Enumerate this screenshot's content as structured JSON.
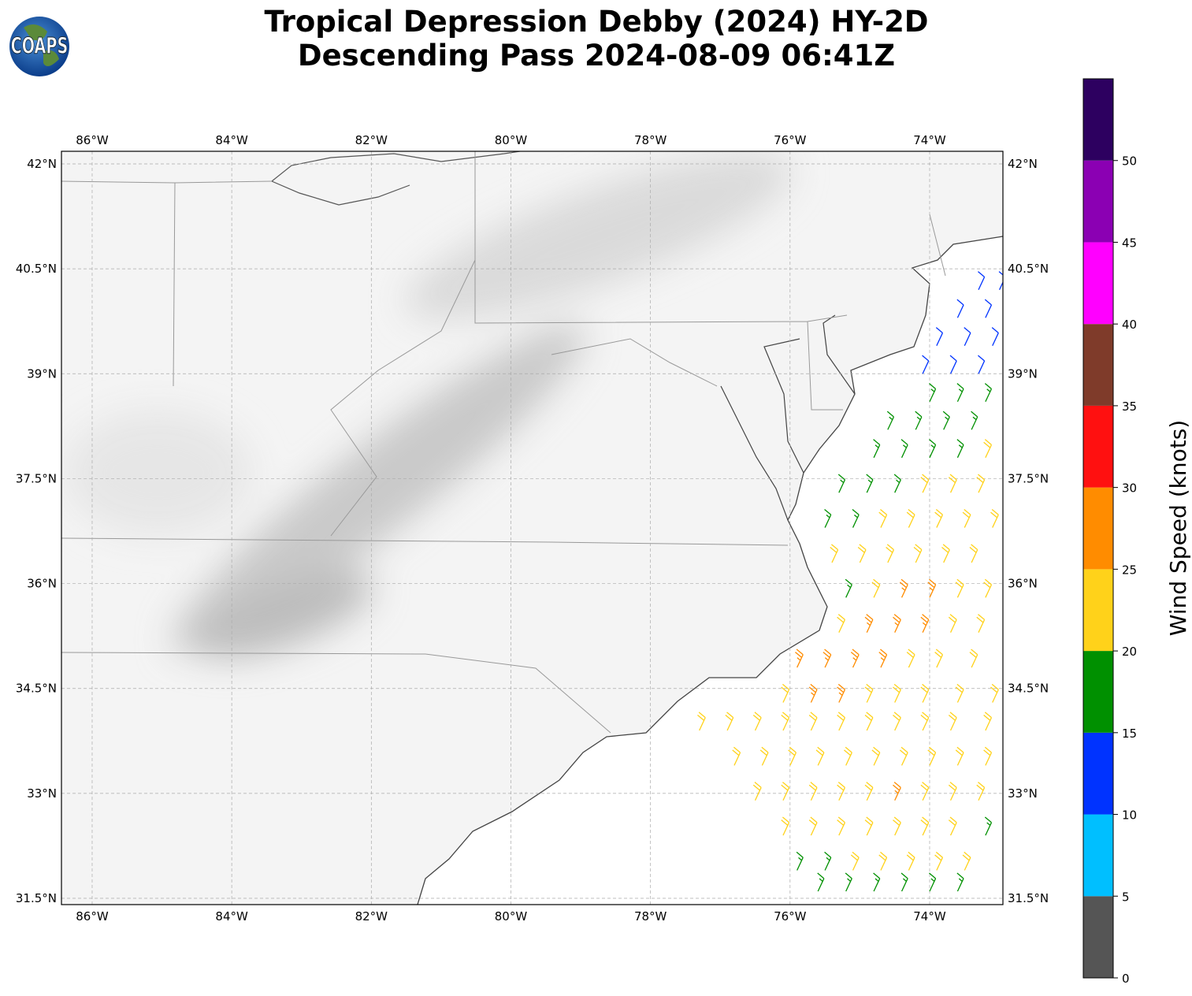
{
  "header": {
    "title_line1": "Tropical Depression Debby (2024) HY-2D",
    "title_line2": "Descending Pass 2024-08-09 06:41Z",
    "logo_text": "COAPS"
  },
  "map": {
    "lon_range": [
      -86.44,
      -72.95
    ],
    "lat_range": [
      31.41,
      42.18
    ],
    "lon_ticks": [
      {
        "value": -86,
        "label": "86°W"
      },
      {
        "value": -84,
        "label": "84°W"
      },
      {
        "value": -82,
        "label": "82°W"
      },
      {
        "value": -80,
        "label": "80°W"
      },
      {
        "value": -78,
        "label": "78°W"
      },
      {
        "value": -76,
        "label": "76°W"
      },
      {
        "value": -74,
        "label": "74°W"
      }
    ],
    "lat_ticks": [
      {
        "value": 42,
        "label": "42°N"
      },
      {
        "value": 40.5,
        "label": "40.5°N"
      },
      {
        "value": 39,
        "label": "39°N"
      },
      {
        "value": 37.5,
        "label": "37.5°N"
      },
      {
        "value": 36,
        "label": "36°N"
      },
      {
        "value": 34.5,
        "label": "34.5°N"
      },
      {
        "value": 33,
        "label": "33°N"
      },
      {
        "value": 31.5,
        "label": "31.5°N"
      }
    ],
    "barbs": [
      [
        -73.3,
        40.2,
        12
      ],
      [
        -73.0,
        40.2,
        12
      ],
      [
        -73.6,
        39.8,
        12
      ],
      [
        -73.2,
        39.8,
        12
      ],
      [
        -73.9,
        39.4,
        12
      ],
      [
        -73.5,
        39.4,
        13
      ],
      [
        -73.1,
        39.4,
        12
      ],
      [
        -74.1,
        39.0,
        11
      ],
      [
        -73.7,
        39.0,
        13
      ],
      [
        -73.3,
        39.0,
        14
      ],
      [
        -74.0,
        38.6,
        17
      ],
      [
        -73.6,
        38.6,
        18
      ],
      [
        -73.2,
        38.6,
        16
      ],
      [
        -74.6,
        38.2,
        17
      ],
      [
        -74.2,
        38.2,
        18
      ],
      [
        -73.8,
        38.2,
        18
      ],
      [
        -73.4,
        38.2,
        17
      ],
      [
        -74.8,
        37.8,
        18
      ],
      [
        -74.4,
        37.8,
        19
      ],
      [
        -74.0,
        37.8,
        18
      ],
      [
        -73.6,
        37.8,
        17
      ],
      [
        -73.2,
        37.8,
        22
      ],
      [
        -75.3,
        37.3,
        17
      ],
      [
        -74.9,
        37.3,
        18
      ],
      [
        -74.5,
        37.3,
        19
      ],
      [
        -74.1,
        37.3,
        21
      ],
      [
        -73.7,
        37.3,
        22
      ],
      [
        -73.3,
        37.3,
        22
      ],
      [
        -75.5,
        36.8,
        17
      ],
      [
        -75.1,
        36.8,
        19
      ],
      [
        -74.7,
        36.8,
        22
      ],
      [
        -74.3,
        36.8,
        22
      ],
      [
        -73.9,
        36.8,
        23
      ],
      [
        -73.5,
        36.8,
        23
      ],
      [
        -73.1,
        36.8,
        22
      ],
      [
        -75.4,
        36.3,
        21
      ],
      [
        -75.0,
        36.3,
        22
      ],
      [
        -74.6,
        36.3,
        23
      ],
      [
        -74.2,
        36.3,
        24
      ],
      [
        -73.8,
        36.3,
        22
      ],
      [
        -73.4,
        36.3,
        23
      ],
      [
        -75.2,
        35.8,
        17
      ],
      [
        -74.8,
        35.8,
        24
      ],
      [
        -74.4,
        35.8,
        26
      ],
      [
        -74.0,
        35.8,
        26
      ],
      [
        -73.6,
        35.8,
        24
      ],
      [
        -73.2,
        35.8,
        22
      ],
      [
        -75.3,
        35.3,
        22
      ],
      [
        -74.9,
        35.3,
        26
      ],
      [
        -74.5,
        35.3,
        27
      ],
      [
        -74.1,
        35.3,
        26
      ],
      [
        -73.7,
        35.3,
        24
      ],
      [
        -73.3,
        35.3,
        22
      ],
      [
        -75.9,
        34.8,
        26
      ],
      [
        -75.5,
        34.8,
        27
      ],
      [
        -75.1,
        34.8,
        26
      ],
      [
        -74.7,
        34.8,
        26
      ],
      [
        -74.3,
        34.8,
        24
      ],
      [
        -73.9,
        34.8,
        23
      ],
      [
        -73.4,
        34.8,
        22
      ],
      [
        -76.1,
        34.3,
        24
      ],
      [
        -75.7,
        34.3,
        26
      ],
      [
        -75.3,
        34.3,
        26
      ],
      [
        -74.9,
        34.3,
        24
      ],
      [
        -74.5,
        34.3,
        23
      ],
      [
        -74.1,
        34.3,
        22
      ],
      [
        -73.6,
        34.3,
        22
      ],
      [
        -73.1,
        34.3,
        21
      ],
      [
        -77.3,
        33.9,
        22
      ],
      [
        -76.9,
        33.9,
        22
      ],
      [
        -76.5,
        33.9,
        22
      ],
      [
        -76.1,
        33.9,
        23
      ],
      [
        -75.7,
        33.9,
        24
      ],
      [
        -75.3,
        33.9,
        23
      ],
      [
        -74.9,
        33.9,
        22
      ],
      [
        -74.5,
        33.9,
        22
      ],
      [
        -74.1,
        33.9,
        22
      ],
      [
        -73.7,
        33.9,
        22
      ],
      [
        -73.2,
        33.9,
        21
      ],
      [
        -76.8,
        33.4,
        22
      ],
      [
        -76.4,
        33.4,
        22
      ],
      [
        -76.0,
        33.4,
        23
      ],
      [
        -75.6,
        33.4,
        22
      ],
      [
        -75.2,
        33.4,
        22
      ],
      [
        -74.8,
        33.4,
        21
      ],
      [
        -74.4,
        33.4,
        22
      ],
      [
        -74.0,
        33.4,
        21
      ],
      [
        -73.6,
        33.4,
        21
      ],
      [
        -73.2,
        33.4,
        21
      ],
      [
        -76.5,
        32.9,
        21
      ],
      [
        -76.1,
        32.9,
        22
      ],
      [
        -75.7,
        32.9,
        22
      ],
      [
        -75.3,
        32.9,
        22
      ],
      [
        -74.9,
        32.9,
        21
      ],
      [
        -74.5,
        32.9,
        26
      ],
      [
        -74.1,
        32.9,
        21
      ],
      [
        -73.7,
        32.9,
        21
      ],
      [
        -73.3,
        32.9,
        21
      ],
      [
        -76.1,
        32.4,
        21
      ],
      [
        -75.7,
        32.4,
        21
      ],
      [
        -75.3,
        32.4,
        21
      ],
      [
        -74.9,
        32.4,
        21
      ],
      [
        -74.5,
        32.4,
        21
      ],
      [
        -74.1,
        32.4,
        21
      ],
      [
        -73.7,
        32.4,
        21
      ],
      [
        -73.2,
        32.4,
        18
      ],
      [
        -75.9,
        31.9,
        17
      ],
      [
        -75.5,
        31.9,
        17
      ],
      [
        -75.1,
        31.9,
        21
      ],
      [
        -74.7,
        31.9,
        21
      ],
      [
        -74.3,
        31.9,
        21
      ],
      [
        -73.9,
        31.9,
        21
      ],
      [
        -73.5,
        31.9,
        21
      ],
      [
        -75.6,
        31.6,
        17
      ],
      [
        -75.2,
        31.6,
        17
      ],
      [
        -74.8,
        31.6,
        17
      ],
      [
        -74.4,
        31.6,
        18
      ],
      [
        -74.0,
        31.6,
        17
      ],
      [
        -73.6,
        31.6,
        17
      ]
    ]
  },
  "colorbar": {
    "label": "Wind Speed (knots)",
    "range": [
      0,
      55
    ],
    "ticks": [
      0,
      5,
      10,
      15,
      20,
      25,
      30,
      35,
      40,
      45,
      50
    ],
    "bounds": [
      0,
      5,
      10,
      15,
      20,
      25,
      30,
      35,
      40,
      45,
      50,
      55
    ],
    "colors": [
      "#555555",
      "#00bfff",
      "#0033ff",
      "#009000",
      "#ffd21a",
      "#ff8c00",
      "#ff1010",
      "#7f3b2a",
      "#ff00ff",
      "#8b00b3",
      "#2d0060"
    ]
  }
}
